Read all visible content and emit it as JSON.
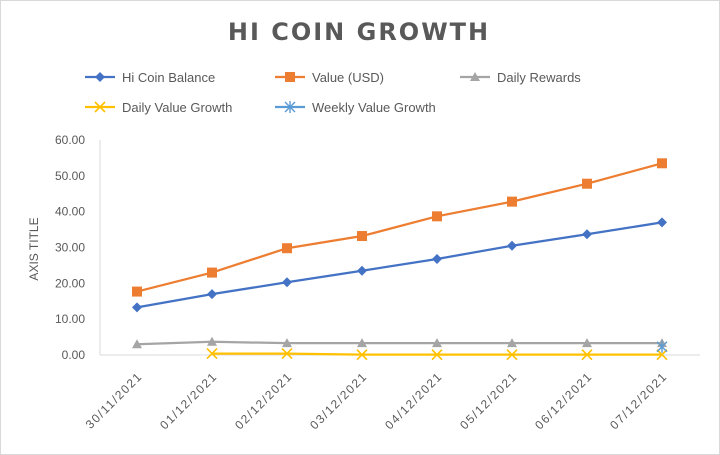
{
  "chart_data": {
    "type": "line",
    "title": "HI COIN GROWTH",
    "xlabel": "",
    "ylabel": "AXIS TITLE",
    "ylim": [
      0,
      60
    ],
    "yticks": [
      "0.00",
      "10.00",
      "20.00",
      "30.00",
      "40.00",
      "50.00",
      "60.00"
    ],
    "categories": [
      "30/11/2021",
      "01/12/2021",
      "02/12/2021",
      "03/12/2021",
      "04/12/2021",
      "05/12/2021",
      "06/12/2021",
      "07/12/2021"
    ],
    "legend_position": "top",
    "grid": false,
    "series": [
      {
        "name": "Hi Coin Balance",
        "color": "#4472C4",
        "marker": "diamond",
        "values": [
          13.3,
          17.0,
          20.3,
          23.5,
          26.8,
          30.5,
          33.7,
          37.0
        ]
      },
      {
        "name": "Value (USD)",
        "color": "#ED7D31",
        "marker": "square",
        "values": [
          17.7,
          23.0,
          29.8,
          33.2,
          38.7,
          42.8,
          47.8,
          53.5
        ]
      },
      {
        "name": "Daily Rewards",
        "color": "#A5A5A5",
        "marker": "triangle",
        "values": [
          3.0,
          3.7,
          3.3,
          3.3,
          3.3,
          3.3,
          3.3,
          3.3
        ]
      },
      {
        "name": "Daily Value Growth",
        "color": "#FFC000",
        "marker": "x",
        "values": [
          null,
          0.4,
          0.4,
          0.1,
          0.1,
          0.1,
          0.1,
          0.1
        ]
      },
      {
        "name": "Weekly Value Growth",
        "color": "#5B9BD5",
        "marker": "star",
        "values": [
          null,
          null,
          null,
          null,
          null,
          null,
          null,
          2.3
        ]
      }
    ]
  }
}
